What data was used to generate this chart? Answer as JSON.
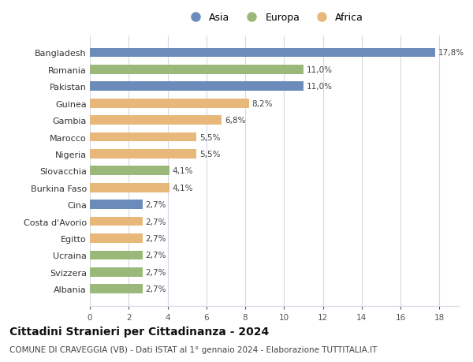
{
  "categories": [
    "Bangladesh",
    "Romania",
    "Pakistan",
    "Guinea",
    "Gambia",
    "Marocco",
    "Nigeria",
    "Slovacchia",
    "Burkina Faso",
    "Cina",
    "Costa d'Avorio",
    "Egitto",
    "Ucraina",
    "Svizzera",
    "Albania"
  ],
  "values": [
    17.8,
    11.0,
    11.0,
    8.2,
    6.8,
    5.5,
    5.5,
    4.1,
    4.1,
    2.7,
    2.7,
    2.7,
    2.7,
    2.7,
    2.7
  ],
  "labels": [
    "17,8%",
    "11,0%",
    "11,0%",
    "8,2%",
    "6,8%",
    "5,5%",
    "5,5%",
    "4,1%",
    "4,1%",
    "2,7%",
    "2,7%",
    "2,7%",
    "2,7%",
    "2,7%",
    "2,7%"
  ],
  "continents": [
    "Asia",
    "Europa",
    "Asia",
    "Africa",
    "Africa",
    "Africa",
    "Africa",
    "Europa",
    "Africa",
    "Asia",
    "Africa",
    "Africa",
    "Europa",
    "Europa",
    "Europa"
  ],
  "colors": {
    "Asia": "#6b8cba",
    "Europa": "#9ab87a",
    "Africa": "#e8b87a"
  },
  "legend_labels": [
    "Asia",
    "Europa",
    "Africa"
  ],
  "xlim": [
    0,
    19
  ],
  "xticks": [
    0,
    2,
    4,
    6,
    8,
    10,
    12,
    14,
    16,
    18
  ],
  "title": "Cittadini Stranieri per Cittadinanza - 2024",
  "subtitle": "COMUNE DI CRAVEGGIA (VB) - Dati ISTAT al 1° gennaio 2024 - Elaborazione TUTTITALIA.IT",
  "bg_color": "#ffffff",
  "grid_color": "#d8d8e8",
  "bar_height": 0.55,
  "label_fontsize": 7.5,
  "category_fontsize": 8,
  "tick_fontsize": 7.5,
  "title_fontsize": 10,
  "subtitle_fontsize": 7.5,
  "legend_fontsize": 9
}
